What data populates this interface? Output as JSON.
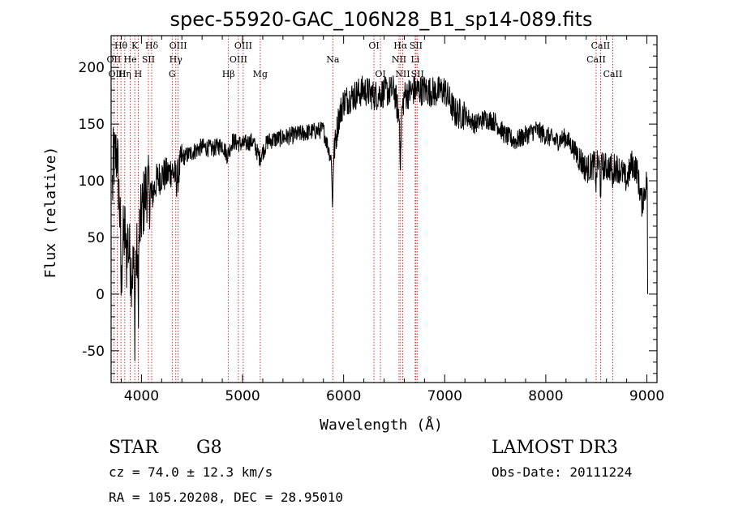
{
  "chart_data": {
    "type": "line",
    "title": "spec-55920-GAC_106N28_B1_sp14-089.fits",
    "xlabel": "Wavelength (Å)",
    "ylabel": "Flux (relative)",
    "xlim": [
      3700,
      9100
    ],
    "ylim": [
      -78,
      228
    ],
    "xticks": [
      4000,
      5000,
      6000,
      7000,
      8000,
      9000
    ],
    "yticks": [
      -50,
      0,
      50,
      100,
      150,
      200
    ],
    "line_color": "#000000",
    "marker_color": "#cc0000",
    "anchors": [
      [
        3720,
        115
      ],
      [
        3760,
        125
      ],
      [
        3800,
        40
      ],
      [
        3850,
        60
      ],
      [
        3900,
        20
      ],
      [
        3950,
        30
      ],
      [
        4000,
        70
      ],
      [
        4050,
        95
      ],
      [
        4100,
        85
      ],
      [
        4150,
        100
      ],
      [
        4200,
        105
      ],
      [
        4250,
        105
      ],
      [
        4300,
        110
      ],
      [
        4350,
        100
      ],
      [
        4400,
        120
      ],
      [
        4500,
        125
      ],
      [
        4600,
        130
      ],
      [
        4700,
        128
      ],
      [
        4800,
        132
      ],
      [
        4850,
        122
      ],
      [
        4900,
        135
      ],
      [
        5000,
        132
      ],
      [
        5100,
        135
      ],
      [
        5170,
        120
      ],
      [
        5250,
        135
      ],
      [
        5400,
        138
      ],
      [
        5600,
        142
      ],
      [
        5800,
        145
      ],
      [
        5890,
        115
      ],
      [
        5950,
        155
      ],
      [
        6000,
        170
      ],
      [
        6100,
        175
      ],
      [
        6200,
        180
      ],
      [
        6300,
        175
      ],
      [
        6400,
        178
      ],
      [
        6500,
        180
      ],
      [
        6560,
        150
      ],
      [
        6600,
        175
      ],
      [
        6700,
        180
      ],
      [
        6800,
        180
      ],
      [
        6900,
        178
      ],
      [
        7000,
        180
      ],
      [
        7100,
        160
      ],
      [
        7200,
        158
      ],
      [
        7300,
        150
      ],
      [
        7400,
        155
      ],
      [
        7500,
        152
      ],
      [
        7600,
        140
      ],
      [
        7700,
        135
      ],
      [
        7800,
        140
      ],
      [
        7900,
        145
      ],
      [
        8000,
        140
      ],
      [
        8100,
        135
      ],
      [
        8200,
        138
      ],
      [
        8300,
        125
      ],
      [
        8400,
        110
      ],
      [
        8500,
        115
      ],
      [
        8600,
        112
      ],
      [
        8700,
        112
      ],
      [
        8750,
        108
      ],
      [
        8800,
        100
      ],
      [
        8850,
        115
      ],
      [
        8900,
        110
      ],
      [
        8950,
        80
      ],
      [
        9000,
        100
      ],
      [
        9010,
        95
      ]
    ],
    "lines": [
      {
        "label": "Hθ",
        "x": 3797,
        "row": 1
      },
      {
        "label": "OII",
        "x": 3727,
        "row": 2
      },
      {
        "label": "OIII",
        "x": 3760,
        "row": 3
      },
      {
        "label": "K",
        "x": 3934,
        "row": 1
      },
      {
        "label": "He",
        "x": 3889,
        "row": 2
      },
      {
        "label": "Hη",
        "x": 3835,
        "row": 3
      },
      {
        "label": "Hδ",
        "x": 4101,
        "row": 1
      },
      {
        "label": "SII",
        "x": 4069,
        "row": 2
      },
      {
        "label": "H",
        "x": 3968,
        "row": 3
      },
      {
        "label": "OIII",
        "x": 4363,
        "row": 1
      },
      {
        "label": "Hγ",
        "x": 4340,
        "row": 2
      },
      {
        "label": "G",
        "x": 4304,
        "row": 3
      },
      {
        "label": "OIII",
        "x": 5007,
        "row": 1
      },
      {
        "label": "OIII",
        "x": 4959,
        "row": 2
      },
      {
        "label": "Hβ",
        "x": 4861,
        "row": 3
      },
      {
        "label": "Mg",
        "x": 5175,
        "row": 3
      },
      {
        "label": "Na",
        "x": 5893,
        "row": 2
      },
      {
        "label": "OI",
        "x": 6300,
        "row": 1
      },
      {
        "label": "OI",
        "x": 6364,
        "row": 3
      },
      {
        "label": "Hα",
        "x": 6563,
        "row": 1
      },
      {
        "label": "SII",
        "x": 6716,
        "row": 1
      },
      {
        "label": "NII",
        "x": 6548,
        "row": 2
      },
      {
        "label": "Li",
        "x": 6708,
        "row": 2
      },
      {
        "label": "NII",
        "x": 6584,
        "row": 3
      },
      {
        "label": "SII",
        "x": 6731,
        "row": 3
      },
      {
        "label": "CaII",
        "x": 8542,
        "row": 1
      },
      {
        "label": "CaII",
        "x": 8498,
        "row": 2
      },
      {
        "label": "CaII",
        "x": 8662,
        "row": 3
      }
    ]
  },
  "footer": {
    "class": "STAR",
    "subclass": "G8",
    "survey": "LAMOST DR3",
    "cz": "cz = 74.0 ± 12.3 km/s",
    "obs_date": "Obs-Date: 20111224",
    "coords": "RA = 105.20208, DEC =  28.95010"
  }
}
